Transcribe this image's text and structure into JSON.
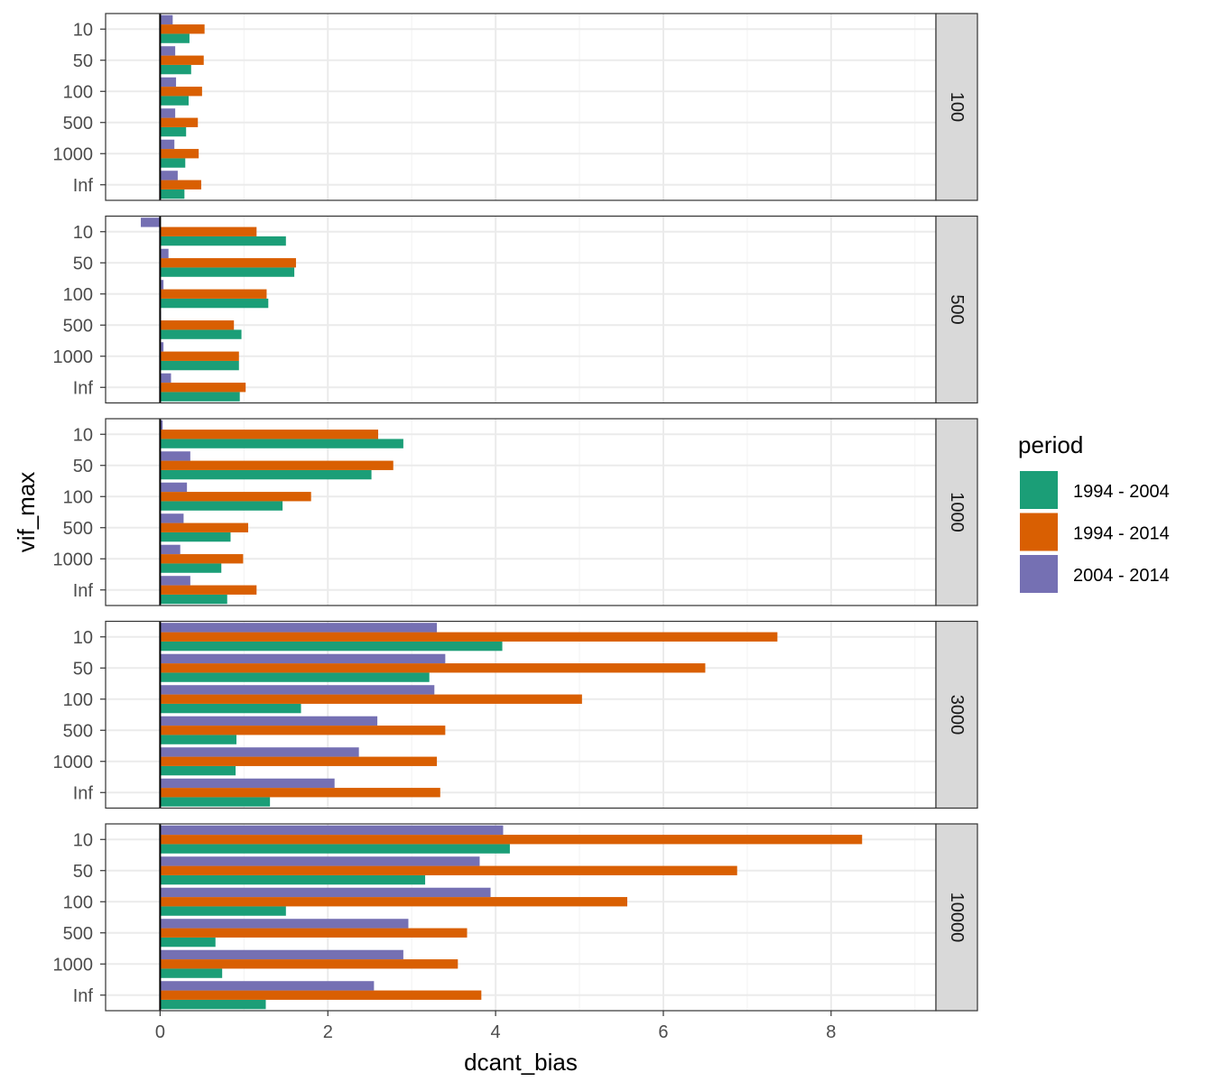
{
  "chart_data": {
    "type": "bar",
    "orientation": "horizontal",
    "xlabel": "dcant_bias",
    "ylabel": "vif_max",
    "xlim": [
      -0.65,
      9.25
    ],
    "x_ticks": [
      0,
      2,
      4,
      6,
      8
    ],
    "grid": true,
    "categories": [
      "10",
      "50",
      "100",
      "500",
      "1000",
      "Inf"
    ],
    "legend": {
      "title": "period",
      "position": "right",
      "entries": [
        "1994 - 2004",
        "1994 - 2014",
        "2004 - 2014"
      ]
    },
    "colors": {
      "1994 - 2004": "#1b9e77",
      "1994 - 2014": "#d95f02",
      "2004 - 2014": "#7570b3"
    },
    "facets": [
      {
        "label": "100",
        "series": [
          {
            "name": "1994 - 2004",
            "values": [
              0.35,
              0.37,
              0.34,
              0.31,
              0.3,
              0.29
            ]
          },
          {
            "name": "1994 - 2014",
            "values": [
              0.53,
              0.52,
              0.5,
              0.45,
              0.46,
              0.49
            ]
          },
          {
            "name": "2004 - 2014",
            "values": [
              0.15,
              0.18,
              0.19,
              0.18,
              0.17,
              0.21
            ]
          }
        ]
      },
      {
        "label": "500",
        "series": [
          {
            "name": "1994 - 2004",
            "values": [
              1.5,
              1.6,
              1.29,
              0.97,
              0.94,
              0.95
            ]
          },
          {
            "name": "1994 - 2014",
            "values": [
              1.15,
              1.62,
              1.27,
              0.88,
              0.94,
              1.02
            ]
          },
          {
            "name": "2004 - 2014",
            "values": [
              -0.23,
              0.1,
              0.04,
              0.01,
              0.04,
              0.13
            ]
          }
        ]
      },
      {
        "label": "1000",
        "series": [
          {
            "name": "1994 - 2004",
            "values": [
              2.9,
              2.52,
              1.46,
              0.84,
              0.73,
              0.8
            ]
          },
          {
            "name": "1994 - 2014",
            "values": [
              2.6,
              2.78,
              1.8,
              1.05,
              0.99,
              1.15
            ]
          },
          {
            "name": "2004 - 2014",
            "values": [
              0.03,
              0.36,
              0.32,
              0.28,
              0.24,
              0.36
            ]
          }
        ]
      },
      {
        "label": "3000",
        "series": [
          {
            "name": "1994 - 2004",
            "values": [
              4.08,
              3.21,
              1.68,
              0.91,
              0.9,
              1.31
            ]
          },
          {
            "name": "1994 - 2014",
            "values": [
              7.36,
              6.5,
              5.03,
              3.4,
              3.3,
              3.34
            ]
          },
          {
            "name": "2004 - 2014",
            "values": [
              3.3,
              3.4,
              3.27,
              2.59,
              2.37,
              2.08
            ]
          }
        ]
      },
      {
        "label": "10000",
        "series": [
          {
            "name": "1994 - 2004",
            "values": [
              4.17,
              3.16,
              1.5,
              0.66,
              0.74,
              1.26
            ]
          },
          {
            "name": "1994 - 2014",
            "values": [
              8.37,
              6.88,
              5.57,
              3.66,
              3.55,
              3.83
            ]
          },
          {
            "name": "2004 - 2014",
            "values": [
              4.09,
              3.81,
              3.94,
              2.96,
              2.9,
              2.55
            ]
          }
        ]
      }
    ]
  }
}
